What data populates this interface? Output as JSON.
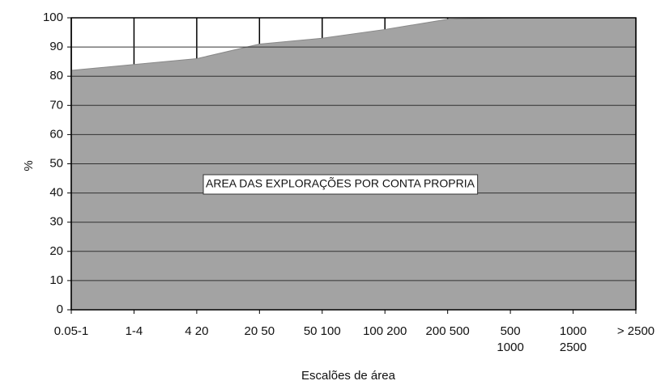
{
  "chart_data": {
    "type": "area",
    "categories": [
      [
        "0.05-1"
      ],
      [
        "1-4"
      ],
      [
        "4 20"
      ],
      [
        "20 50"
      ],
      [
        "50 100"
      ],
      [
        "100 200"
      ],
      [
        "200 500"
      ],
      [
        "500",
        "1000"
      ],
      [
        "1000",
        "2500"
      ],
      [
        "> 2500"
      ]
    ],
    "values": [
      82,
      84,
      86,
      91,
      93,
      96,
      99.5,
      100,
      100,
      100
    ],
    "color": "#a3a3a3",
    "ylim": [
      0,
      100
    ],
    "yticks": [
      0,
      10,
      20,
      30,
      40,
      50,
      60,
      70,
      80,
      90,
      100
    ],
    "grid": true,
    "y_label": "%",
    "x_label": "Escalões de área",
    "annotation": "AREA DAS EXPLORAÇÕES POR CONTA PROPRIA"
  }
}
